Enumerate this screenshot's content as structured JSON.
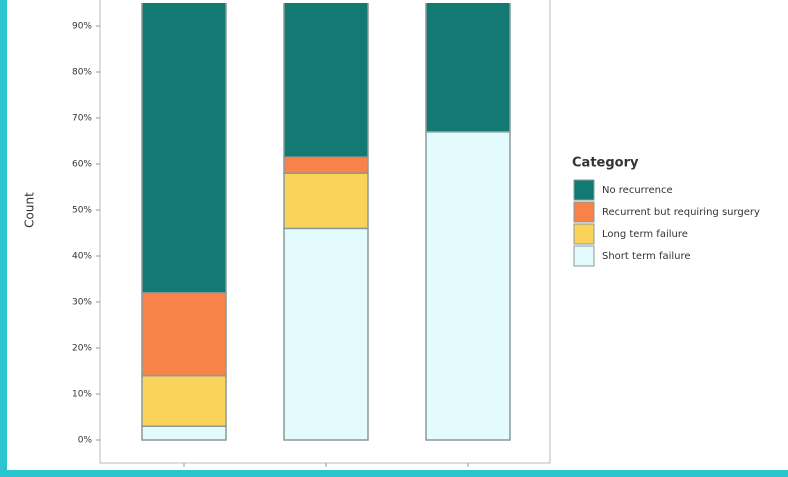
{
  "chart_data": {
    "type": "stacked_bar",
    "y_label": "Count",
    "categories": [
      null,
      null,
      null
    ],
    "series": [
      {
        "name": "Short term failure",
        "color": "#e3fbfd",
        "values": [
          3,
          46,
          67
        ]
      },
      {
        "name": "Long term failure",
        "color": "#fcd35a",
        "values": [
          11,
          12,
          0
        ]
      },
      {
        "name": "Recurrent but requiring surgery",
        "color": "#f7834a",
        "values": [
          18,
          3.5,
          0
        ]
      },
      {
        "name": "No recurrence",
        "color": "#137a73",
        "values": [
          68,
          38.5,
          33
        ]
      }
    ],
    "ylim": [
      -5,
      95
    ],
    "yticks": [
      {
        "value": 0,
        "label": "0%"
      },
      {
        "value": 10,
        "label": "10%"
      },
      {
        "value": 20,
        "label": "20%"
      },
      {
        "value": 30,
        "label": "30%"
      },
      {
        "value": 40,
        "label": "40%"
      },
      {
        "value": 50,
        "label": "50%"
      },
      {
        "value": 60,
        "label": "60%"
      },
      {
        "value": 70,
        "label": "70%"
      },
      {
        "value": 80,
        "label": "80%"
      },
      {
        "value": 90,
        "label": "90%"
      }
    ],
    "legend_title": "Category",
    "legend_position": "right"
  }
}
